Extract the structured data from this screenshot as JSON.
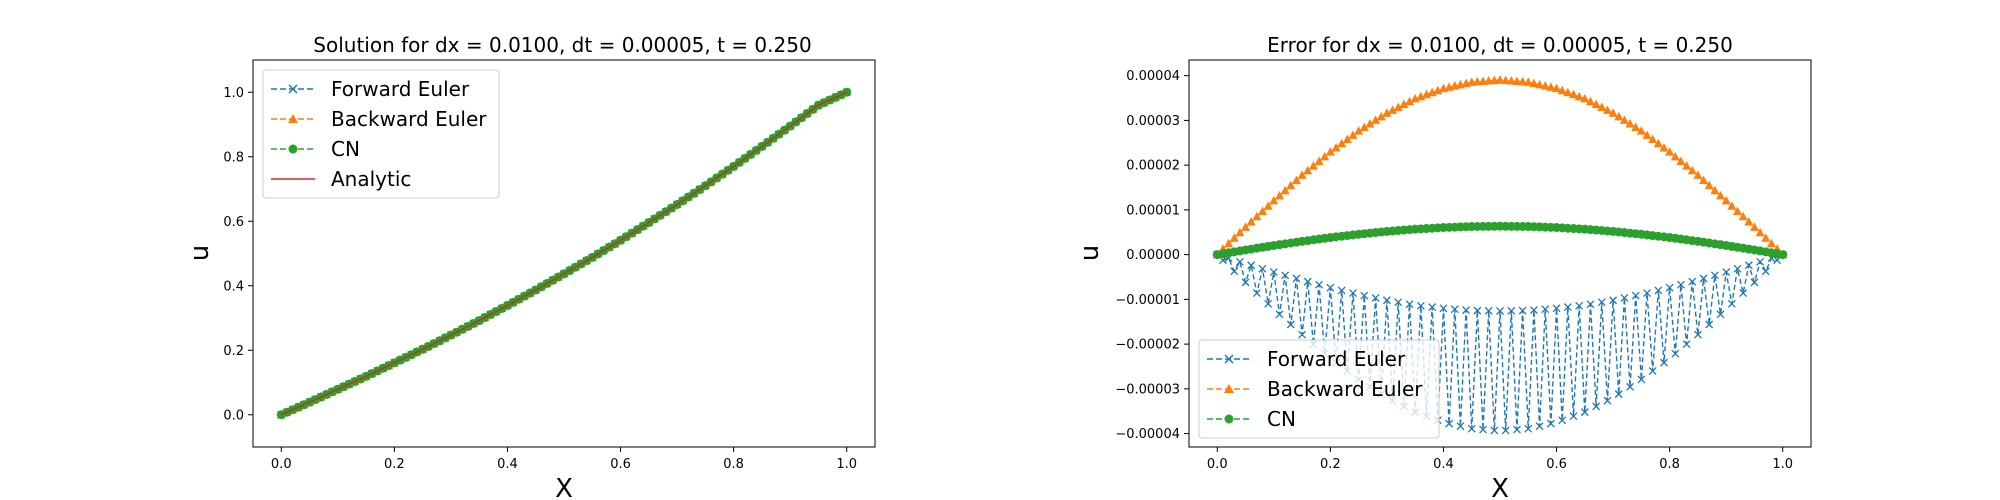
{
  "chart_data": [
    {
      "type": "line",
      "title": "Solution for dx = 0.0100, dt = 0.00005, t = 0.250",
      "xlabel": "X",
      "ylabel": "u",
      "xlim": [
        -0.05,
        1.05
      ],
      "ylim": [
        -0.1,
        1.1
      ],
      "x_ticks": [
        0.0,
        0.2,
        0.4,
        0.6,
        0.8,
        1.0
      ],
      "x_tick_labels": [
        "0.0",
        "0.2",
        "0.4",
        "0.6",
        "0.8",
        "1.0"
      ],
      "y_ticks": [
        0.0,
        0.2,
        0.4,
        0.6,
        0.8,
        1.0
      ],
      "y_tick_labels": [
        "0.0",
        "0.2",
        "0.4",
        "0.6",
        "0.8",
        "1.0"
      ],
      "legend_position": "upper left",
      "x": [
        0.0,
        0.05,
        0.1,
        0.15,
        0.2,
        0.25,
        0.3,
        0.35,
        0.4,
        0.45,
        0.5,
        0.55,
        0.6,
        0.65,
        0.7,
        0.75,
        0.8,
        0.85,
        0.9,
        0.95,
        1.0
      ],
      "series": [
        {
          "name": "Forward Euler",
          "color": "#1f77b4",
          "marker": "x",
          "linestyle": "dashed",
          "values": [
            0.0,
            0.039,
            0.079,
            0.119,
            0.161,
            0.203,
            0.247,
            0.292,
            0.339,
            0.387,
            0.437,
            0.488,
            0.541,
            0.596,
            0.652,
            0.71,
            0.77,
            0.832,
            0.895,
            0.96,
            1.0
          ]
        },
        {
          "name": "Backward Euler",
          "color": "#ff7f0e",
          "marker": "triangle",
          "linestyle": "dashed",
          "values": [
            0.0,
            0.039,
            0.079,
            0.119,
            0.161,
            0.203,
            0.247,
            0.292,
            0.339,
            0.387,
            0.437,
            0.488,
            0.541,
            0.596,
            0.652,
            0.71,
            0.77,
            0.832,
            0.895,
            0.96,
            1.0
          ]
        },
        {
          "name": "CN",
          "color": "#2ca02c",
          "marker": "circle",
          "linestyle": "dashed",
          "values": [
            0.0,
            0.039,
            0.079,
            0.119,
            0.161,
            0.203,
            0.247,
            0.292,
            0.339,
            0.387,
            0.437,
            0.488,
            0.541,
            0.596,
            0.652,
            0.71,
            0.77,
            0.832,
            0.895,
            0.96,
            1.0
          ]
        },
        {
          "name": "Analytic",
          "color": "#d62728",
          "marker": "none",
          "linestyle": "solid",
          "values": [
            0.0,
            0.039,
            0.079,
            0.119,
            0.161,
            0.203,
            0.247,
            0.292,
            0.339,
            0.387,
            0.437,
            0.488,
            0.541,
            0.596,
            0.652,
            0.71,
            0.77,
            0.832,
            0.895,
            0.96,
            1.0
          ]
        }
      ]
    },
    {
      "type": "line",
      "title": "Error for dx = 0.0100, dt = 0.00005, t = 0.250",
      "xlabel": "X",
      "ylabel": "u",
      "xlim": [
        -0.05,
        1.05
      ],
      "ylim": [
        -4.3e-05,
        4.35e-05
      ],
      "x_ticks": [
        0.0,
        0.2,
        0.4,
        0.6,
        0.8,
        1.0
      ],
      "x_tick_labels": [
        "0.0",
        "0.2",
        "0.4",
        "0.6",
        "0.8",
        "1.0"
      ],
      "y_ticks": [
        -4e-05,
        -3e-05,
        -2e-05,
        -1e-05,
        0.0,
        1e-05,
        2e-05,
        3e-05,
        4e-05
      ],
      "y_tick_labels": [
        "−0.00004",
        "−0.00003",
        "−0.00002",
        "−0.00001",
        "0.00000",
        "0.00001",
        "0.00002",
        "0.00003",
        "0.00004"
      ],
      "legend_position": "lower left",
      "x": [
        0.0,
        0.05,
        0.1,
        0.15,
        0.2,
        0.25,
        0.3,
        0.35,
        0.4,
        0.45,
        0.5,
        0.55,
        0.6,
        0.65,
        0.7,
        0.75,
        0.8,
        0.85,
        0.9,
        0.95,
        1.0
      ],
      "series": [
        {
          "name": "Forward Euler",
          "color": "#1f77b4",
          "marker": "x",
          "linestyle": "dashed",
          "envelope_lower": [
            0.0,
            -6.2e-06,
            -1.22e-05,
            -1.79e-05,
            -2.32e-05,
            -2.79e-05,
            -3.2e-05,
            -3.52e-05,
            -3.75e-05,
            -3.89e-05,
            -3.94e-05,
            -3.89e-05,
            -3.75e-05,
            -3.52e-05,
            -3.2e-05,
            -2.79e-05,
            -2.32e-05,
            -1.79e-05,
            -1.22e-05,
            -6.2e-06,
            0.0
          ],
          "envelope_upper": [
            0.0,
            -2e-06,
            -3.9e-06,
            -5.7e-06,
            -7.4e-06,
            -8.9e-06,
            -1.02e-05,
            -1.13e-05,
            -1.2e-05,
            -1.25e-05,
            -1.26e-05,
            -1.25e-05,
            -1.2e-05,
            -1.13e-05,
            -1.02e-05,
            -8.9e-06,
            -7.4e-06,
            -5.7e-06,
            -3.9e-06,
            -2e-06,
            0.0
          ]
        },
        {
          "name": "Backward Euler",
          "color": "#ff7f0e",
          "marker": "triangle",
          "linestyle": "dashed",
          "values": [
            0.0,
            6.1e-06,
            1.2e-05,
            1.77e-05,
            2.29e-05,
            2.76e-05,
            3.16e-05,
            3.48e-05,
            3.71e-05,
            3.85e-05,
            3.9e-05,
            3.85e-05,
            3.71e-05,
            3.48e-05,
            3.16e-05,
            2.76e-05,
            2.29e-05,
            1.77e-05,
            1.2e-05,
            6.1e-06,
            0.0
          ]
        },
        {
          "name": "CN",
          "color": "#2ca02c",
          "marker": "circle",
          "linestyle": "dashed",
          "values": [
            0.0,
            1.04e-06,
            2.04e-06,
            2.97e-06,
            3.82e-06,
            4.55e-06,
            5.19e-06,
            5.69e-06,
            6.05e-06,
            6.28e-06,
            6.35e-06,
            6.28e-06,
            6.05e-06,
            5.69e-06,
            5.19e-06,
            4.55e-06,
            3.82e-06,
            2.97e-06,
            2.04e-06,
            1.04e-06,
            0.0
          ]
        }
      ]
    }
  ]
}
